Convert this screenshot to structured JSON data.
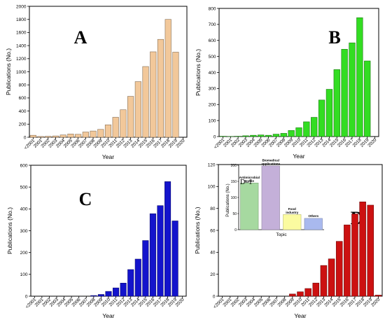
{
  "chart_data": [
    {
      "panel": "A",
      "type": "bar",
      "bar_color": "#f2c89a",
      "categories": [
        "<2001",
        "2001",
        "2002",
        "2003",
        "2004",
        "2005",
        "2006",
        "2007",
        "2008",
        "2009",
        "2010",
        "2011",
        "2012",
        "2013",
        "2014",
        "2015",
        "2016",
        "2017",
        "2018",
        "2019",
        "2020"
      ],
      "values": [
        30,
        12,
        15,
        20,
        35,
        50,
        45,
        80,
        95,
        120,
        190,
        305,
        420,
        625,
        850,
        1080,
        1305,
        1495,
        1800,
        1300,
        0
      ],
      "xlabel": "Year",
      "ylabel": "Publications (No.)",
      "ylim": [
        0,
        2000
      ],
      "yticks": [
        0,
        200,
        400,
        600,
        800,
        1000,
        1200,
        1400,
        1600,
        1800,
        2000
      ]
    },
    {
      "panel": "B",
      "type": "bar",
      "bar_color": "#33dd22",
      "categories": [
        "<2001",
        "2001",
        "2002",
        "2003",
        "2004",
        "2005",
        "2006",
        "2007",
        "2008",
        "2009",
        "2010",
        "2011",
        "2012",
        "2013",
        "2014",
        "2015",
        "2016",
        "2017",
        "2018",
        "2019",
        "2020"
      ],
      "values": [
        2,
        1,
        2,
        5,
        8,
        10,
        8,
        15,
        20,
        38,
        55,
        92,
        120,
        228,
        295,
        418,
        545,
        585,
        742,
        472,
        0
      ],
      "xlabel": "Year",
      "ylabel": "Publications (No.)",
      "ylim": [
        0,
        800
      ],
      "yticks": [
        0,
        100,
        200,
        300,
        400,
        500,
        600,
        700,
        800
      ]
    },
    {
      "panel": "C",
      "type": "bar",
      "bar_color": "#1414cc",
      "categories": [
        "<2001",
        "2001",
        "2002",
        "2003",
        "2004",
        "2005",
        "2006",
        "2007",
        "2008",
        "2009",
        "2010",
        "2011",
        "2012",
        "2013",
        "2014",
        "2015",
        "2016",
        "2017",
        "2018",
        "2019",
        "2020"
      ],
      "values": [
        0,
        0,
        0,
        0,
        0,
        0,
        0,
        0,
        3,
        8,
        22,
        38,
        60,
        122,
        170,
        255,
        378,
        415,
        525,
        345,
        0
      ],
      "xlabel": "Year",
      "ylabel": "Publications (No.)",
      "ylim": [
        0,
        600
      ],
      "yticks": [
        0,
        100,
        200,
        300,
        400,
        500,
        600
      ]
    },
    {
      "panel": "D",
      "type": "bar",
      "bar_color": "#cc1111",
      "categories": [
        "<2001",
        "2001",
        "2002",
        "2003",
        "2004",
        "2005",
        "2006",
        "2007",
        "2008",
        "2009",
        "2010",
        "2011",
        "2012",
        "2013",
        "2014",
        "2015",
        "2016",
        "2017",
        "2018",
        "2019",
        "2020"
      ],
      "values": [
        0,
        0,
        0,
        0,
        0,
        0,
        0,
        0,
        0,
        2,
        4,
        7,
        12,
        28,
        34,
        50,
        65,
        75,
        86,
        83,
        1
      ],
      "xlabel": "Year",
      "ylabel": "Publications (No.)",
      "ylim": [
        0,
        120
      ],
      "yticks": [
        0,
        20,
        40,
        60,
        80,
        100,
        120
      ],
      "inset": {
        "type": "bar",
        "title": "D–1",
        "categories": [
          "Antimicrobial textile",
          "Biomedical applications",
          "Food industry",
          "Others"
        ],
        "values": [
          145,
          198,
          47,
          35
        ],
        "colors": [
          "#a6d9a0",
          "#c4b0d9",
          "#fbfba0",
          "#a9b9ee"
        ],
        "xlabel": "Topic",
        "ylabel": "Publications (No.)",
        "ylim": [
          0,
          200
        ],
        "yticks": [
          0,
          50,
          100,
          150,
          200
        ]
      }
    }
  ]
}
